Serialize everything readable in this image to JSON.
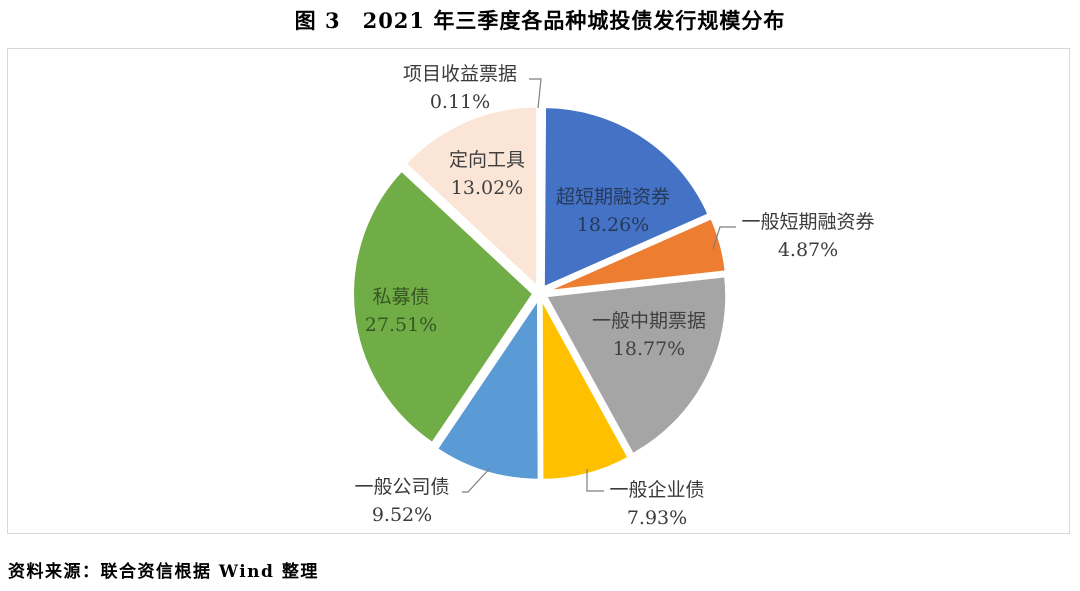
{
  "title": "图 3　2021 年三季度各品种城投债发行规模分布",
  "source": "资料来源：联合资信根据 Wind 整理",
  "chart_data": {
    "type": "pie",
    "title": "2021 年三季度各品种城投债发行规模分布",
    "unit": "%",
    "start_angle_deg": 0,
    "direction": "clockwise",
    "legend": "none",
    "slices": [
      {
        "label": "项目收益票据",
        "value": 0.11,
        "display": "0.11%",
        "color": "#FBE5D6",
        "label_color": "#3b3b3b",
        "label_placement": "outside"
      },
      {
        "label": "超短期融资券",
        "value": 18.26,
        "display": "18.26%",
        "color": "#4472C4",
        "label_color": "#27395B",
        "label_placement": "inside"
      },
      {
        "label": "一般短期融资券",
        "value": 4.87,
        "display": "4.87%",
        "color": "#ED7D31",
        "label_color": "#3b3b3b",
        "label_placement": "outside"
      },
      {
        "label": "一般中期票据",
        "value": 18.77,
        "display": "18.77%",
        "color": "#A5A5A5",
        "label_color": "#404040",
        "label_placement": "inside"
      },
      {
        "label": "一般企业债",
        "value": 7.93,
        "display": "7.93%",
        "color": "#FFC000",
        "label_color": "#3b3b3b",
        "label_placement": "outside"
      },
      {
        "label": "一般公司债",
        "value": 9.52,
        "display": "9.52%",
        "color": "#5B9BD5",
        "label_color": "#3b3b3b",
        "label_placement": "outside"
      },
      {
        "label": "私募债",
        "value": 27.51,
        "display": "27.51%",
        "color": "#70AD47",
        "label_color": "#375623",
        "label_placement": "inside"
      },
      {
        "label": "定向工具",
        "value": 13.02,
        "display": "13.02%",
        "color": "#FBE5D6",
        "label_color": "#404040",
        "label_placement": "inside"
      }
    ],
    "leader_line_color": "#7f7f7f",
    "slice_gap_color": "#ffffff",
    "box_border_color": "#d9d9d9"
  }
}
